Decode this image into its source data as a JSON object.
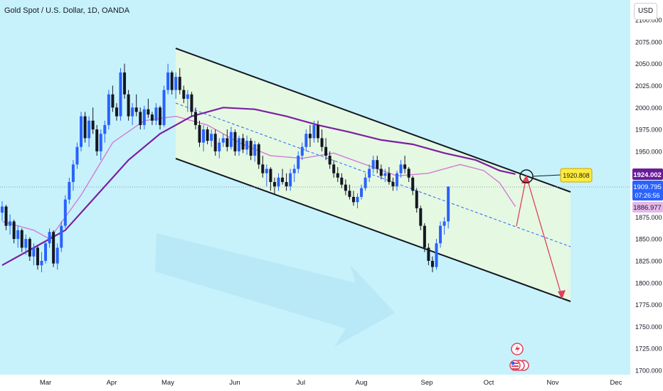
{
  "header": {
    "title": "Gold Spot / U.S. Dollar, 1D, OANDA",
    "currency_button": "USD"
  },
  "colors": {
    "background": "#c7f2fb",
    "channel_fill": "#e5f8e2",
    "bull": "#2962ff",
    "bear": "#131722",
    "ma_fast": "#d27ad8",
    "ma_slow": "#7b1fa2",
    "midline": "#2962ff",
    "projection": "#e0415b",
    "callout": "#ffeb3b"
  },
  "price_axis": {
    "ticks": [
      "2100.000",
      "2075.000",
      "2050.000",
      "2025.000",
      "2000.000",
      "1975.000",
      "1950.000",
      "1925.000",
      "1900.000",
      "1875.000",
      "1850.000",
      "1825.000",
      "1800.000",
      "1775.000",
      "1750.000",
      "1725.000",
      "1700.000"
    ],
    "current_price_label": "1924.002",
    "last_price_label": "1909.795",
    "countdown_label": "07:26:56",
    "ma_label": "1886.977"
  },
  "time_axis": {
    "ticks": [
      "Mar",
      "Apr",
      "May",
      "Jun",
      "Jul",
      "Aug",
      "Sep",
      "Oct",
      "Nov",
      "Dec"
    ]
  },
  "annotations": {
    "target_label": "1920.808"
  },
  "icons": [
    "flash-event-icon",
    "us-flag-event-icon"
  ],
  "chart_data": {
    "type": "candlestick",
    "title": "Gold Spot / U.S. Dollar, 1D, OANDA",
    "xlabel": "",
    "ylabel": "",
    "ylim": [
      1700,
      2100
    ],
    "grid": false,
    "x_ticks": [
      "Mar",
      "Apr",
      "May",
      "Jun",
      "Jul",
      "Aug",
      "Sep",
      "Oct",
      "Nov",
      "Dec"
    ],
    "series": [
      {
        "type": "candlestick",
        "ohlc": [
          [
            1880,
            1893,
            1871,
            1887
          ],
          [
            1887,
            1889,
            1860,
            1865
          ],
          [
            1865,
            1878,
            1855,
            1870
          ],
          [
            1870,
            1872,
            1845,
            1850
          ],
          [
            1850,
            1865,
            1840,
            1860
          ],
          [
            1860,
            1862,
            1835,
            1840
          ],
          [
            1840,
            1855,
            1832,
            1850
          ],
          [
            1850,
            1852,
            1825,
            1830
          ],
          [
            1830,
            1845,
            1820,
            1840
          ],
          [
            1840,
            1842,
            1815,
            1820
          ],
          [
            1820,
            1835,
            1812,
            1825
          ],
          [
            1825,
            1848,
            1822,
            1845
          ],
          [
            1845,
            1862,
            1840,
            1858
          ],
          [
            1858,
            1860,
            1818,
            1822
          ],
          [
            1822,
            1845,
            1815,
            1840
          ],
          [
            1840,
            1870,
            1835,
            1865
          ],
          [
            1865,
            1900,
            1862,
            1895
          ],
          [
            1895,
            1920,
            1890,
            1915
          ],
          [
            1915,
            1940,
            1905,
            1935
          ],
          [
            1935,
            1960,
            1930,
            1955
          ],
          [
            1955,
            1995,
            1950,
            1990
          ],
          [
            1990,
            1995,
            1960,
            1965
          ],
          [
            1965,
            1990,
            1955,
            1985
          ],
          [
            1985,
            2000,
            1970,
            1975
          ],
          [
            1975,
            1980,
            1945,
            1950
          ],
          [
            1950,
            1975,
            1940,
            1970
          ],
          [
            1970,
            1985,
            1960,
            1980
          ],
          [
            1980,
            2020,
            1975,
            2015
          ],
          [
            2015,
            2025,
            1995,
            2000
          ],
          [
            2000,
            2005,
            1985,
            1990
          ],
          [
            1990,
            2045,
            1985,
            2040
          ],
          [
            2040,
            2050,
            2010,
            2015
          ],
          [
            2015,
            2020,
            1985,
            1990
          ],
          [
            1990,
            2005,
            1980,
            2000
          ],
          [
            2000,
            2015,
            1990,
            1995
          ],
          [
            1995,
            2000,
            1975,
            1980
          ],
          [
            1980,
            2002,
            1975,
            1998
          ],
          [
            1998,
            2010,
            1988,
            1992
          ],
          [
            1992,
            1995,
            1980,
            1985
          ],
          [
            1985,
            2005,
            1980,
            2000
          ],
          [
            2000,
            2002,
            1975,
            1980
          ],
          [
            1980,
            2025,
            1978,
            2020
          ],
          [
            2020,
            2050,
            2015,
            2040
          ],
          [
            2040,
            2042,
            2015,
            2020
          ],
          [
            2020,
            2040,
            2010,
            2035
          ],
          [
            2035,
            2045,
            2015,
            2020
          ],
          [
            2020,
            2025,
            2005,
            2010
          ],
          [
            2010,
            2020,
            1995,
            2015
          ],
          [
            2015,
            2018,
            1990,
            1995
          ],
          [
            1995,
            2000,
            1975,
            1980
          ],
          [
            1980,
            1985,
            1955,
            1960
          ],
          [
            1960,
            1980,
            1950,
            1975
          ],
          [
            1975,
            1978,
            1958,
            1962
          ],
          [
            1962,
            1975,
            1955,
            1970
          ],
          [
            1970,
            1975,
            1945,
            1950
          ],
          [
            1950,
            1965,
            1942,
            1960
          ],
          [
            1960,
            1970,
            1955,
            1965
          ],
          [
            1965,
            1975,
            1950,
            1955
          ],
          [
            1955,
            1978,
            1952,
            1972
          ],
          [
            1972,
            1975,
            1945,
            1950
          ],
          [
            1950,
            1968,
            1945,
            1965
          ],
          [
            1965,
            1970,
            1948,
            1952
          ],
          [
            1952,
            1968,
            1946,
            1962
          ],
          [
            1962,
            1965,
            1940,
            1945
          ],
          [
            1945,
            1962,
            1938,
            1958
          ],
          [
            1958,
            1960,
            1930,
            1935
          ],
          [
            1935,
            1945,
            1920,
            1925
          ],
          [
            1925,
            1935,
            1910,
            1930
          ],
          [
            1930,
            1932,
            1905,
            1915
          ],
          [
            1915,
            1920,
            1900,
            1910
          ],
          [
            1910,
            1925,
            1905,
            1920
          ],
          [
            1920,
            1930,
            1912,
            1915
          ],
          [
            1915,
            1925,
            1905,
            1910
          ],
          [
            1910,
            1930,
            1905,
            1925
          ],
          [
            1925,
            1935,
            1915,
            1930
          ],
          [
            1930,
            1950,
            1925,
            1945
          ],
          [
            1945,
            1960,
            1940,
            1955
          ],
          [
            1955,
            1975,
            1950,
            1970
          ],
          [
            1970,
            1980,
            1955,
            1965
          ],
          [
            1965,
            1985,
            1960,
            1980
          ],
          [
            1980,
            1985,
            1960,
            1965
          ],
          [
            1965,
            1975,
            1950,
            1955
          ],
          [
            1955,
            1965,
            1940,
            1945
          ],
          [
            1945,
            1950,
            1930,
            1935
          ],
          [
            1935,
            1940,
            1920,
            1925
          ],
          [
            1925,
            1932,
            1915,
            1920
          ],
          [
            1920,
            1925,
            1908,
            1912
          ],
          [
            1912,
            1918,
            1900,
            1905
          ],
          [
            1905,
            1912,
            1895,
            1898
          ],
          [
            1898,
            1905,
            1888,
            1892
          ],
          [
            1892,
            1902,
            1885,
            1898
          ],
          [
            1898,
            1912,
            1895,
            1908
          ],
          [
            1908,
            1925,
            1905,
            1920
          ],
          [
            1920,
            1935,
            1915,
            1930
          ],
          [
            1930,
            1945,
            1925,
            1940
          ],
          [
            1940,
            1945,
            1925,
            1930
          ],
          [
            1930,
            1935,
            1918,
            1922
          ],
          [
            1922,
            1930,
            1915,
            1925
          ],
          [
            1925,
            1932,
            1912,
            1915
          ],
          [
            1915,
            1920,
            1905,
            1910
          ],
          [
            1910,
            1928,
            1905,
            1925
          ],
          [
            1925,
            1940,
            1920,
            1935
          ],
          [
            1935,
            1945,
            1925,
            1930
          ],
          [
            1930,
            1932,
            1915,
            1920
          ],
          [
            1920,
            1922,
            1900,
            1905
          ],
          [
            1905,
            1908,
            1880,
            1885
          ],
          [
            1885,
            1888,
            1860,
            1865
          ],
          [
            1865,
            1868,
            1835,
            1840
          ],
          [
            1840,
            1845,
            1820,
            1825
          ],
          [
            1825,
            1830,
            1812,
            1818
          ],
          [
            1818,
            1850,
            1815,
            1845
          ],
          [
            1845,
            1870,
            1840,
            1865
          ],
          [
            1865,
            1875,
            1855,
            1870
          ],
          [
            1870,
            1910,
            1862,
            1909.795
          ]
        ]
      },
      {
        "name": "",
        "type": "line",
        "role": "fast moving average",
        "values": [
          [
            0,
            1870
          ],
          [
            8,
            1860
          ],
          [
            12,
            1850
          ],
          [
            20,
            1900
          ],
          [
            28,
            1960
          ],
          [
            36,
            1985
          ],
          [
            44,
            1990
          ],
          [
            52,
            1980
          ],
          [
            60,
            1960
          ],
          [
            68,
            1945
          ],
          [
            76,
            1942
          ],
          [
            84,
            1948
          ],
          [
            92,
            1935
          ],
          [
            100,
            1922
          ],
          [
            108,
            1925
          ],
          [
            116,
            1935
          ],
          [
            122,
            1928
          ],
          [
            126,
            1914
          ],
          [
            130,
            1886.977
          ]
        ]
      },
      {
        "name": "",
        "type": "line",
        "role": "slow moving average",
        "values": [
          [
            0,
            1820
          ],
          [
            8,
            1840
          ],
          [
            16,
            1860
          ],
          [
            24,
            1900
          ],
          [
            32,
            1940
          ],
          [
            40,
            1970
          ],
          [
            48,
            1990
          ],
          [
            56,
            2000
          ],
          [
            64,
            1998
          ],
          [
            72,
            1990
          ],
          [
            80,
            1980
          ],
          [
            88,
            1972
          ],
          [
            96,
            1963
          ],
          [
            104,
            1958
          ],
          [
            112,
            1948
          ],
          [
            120,
            1940
          ],
          [
            126,
            1928
          ],
          [
            130,
            1924
          ]
        ]
      }
    ],
    "last_price": 1909.795,
    "current_price": 1924.002,
    "moving_average_value": 1886.977,
    "projection_target": 1920.808
  }
}
